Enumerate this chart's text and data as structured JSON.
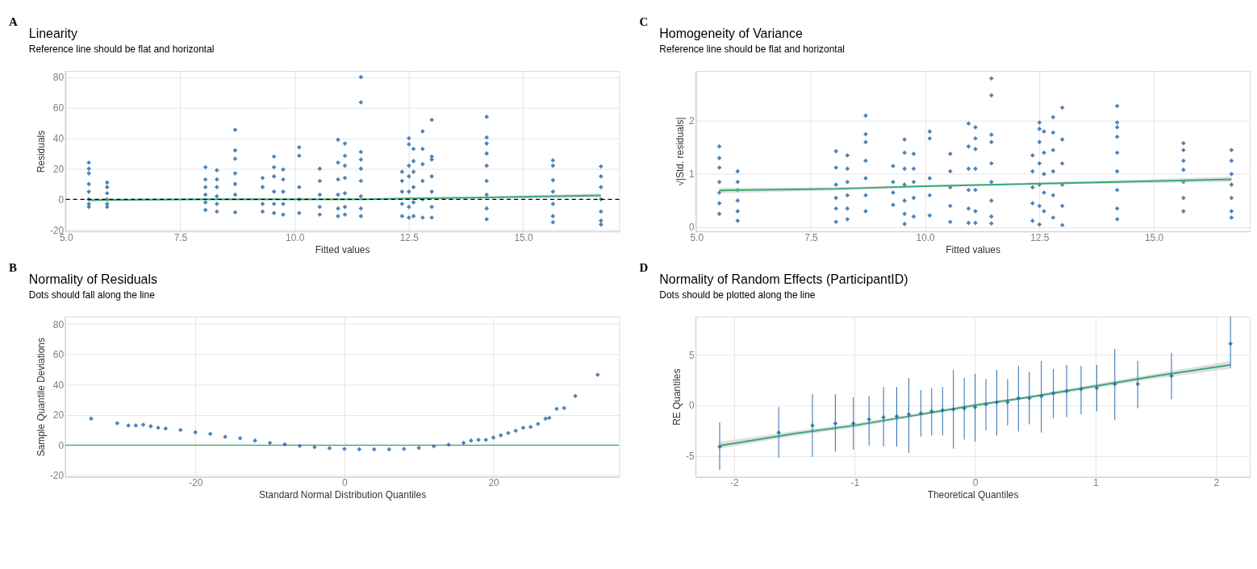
{
  "chart_data": [
    {
      "type": "scatter",
      "title": "Linearity",
      "subtitle": "Reference line should be flat and horizontal",
      "xlabel": "Fitted values",
      "ylabel": "Residuals",
      "annotations": [
        "A"
      ],
      "grid": true,
      "xlim": [
        4.98,
        17.1
      ],
      "xticks": [
        {
          "value": 5,
          "label": "5.0"
        },
        7.5,
        {
          "value": 10,
          "label": "10.0"
        },
        12.5,
        {
          "value": 15,
          "label": "15.0"
        }
      ],
      "ylim": [
        -21,
        84
      ],
      "yticks": [
        -20,
        0,
        20,
        40,
        60,
        80
      ],
      "ref_lines": [
        {
          "axis": "y",
          "value": 0,
          "color": "#000000",
          "line_style": "dashed"
        }
      ],
      "series": [
        {
          "marker": "diamond",
          "color": "#2c6fad",
          "x": [
            5.5,
            5.5,
            5.5,
            5.5,
            5.5,
            5.5,
            5.5,
            5.5,
            5.9,
            5.9,
            5.9,
            5.9,
            5.9,
            5.9,
            8.05,
            8.05,
            8.05,
            8.05,
            8.05,
            8.05,
            8.3,
            8.3,
            8.3,
            8.3,
            8.3,
            8.3,
            8.7,
            8.7,
            8.7,
            8.7,
            8.7,
            8.7,
            8.7,
            9.3,
            9.3,
            9.3,
            9.3,
            9.55,
            9.55,
            9.55,
            9.55,
            9.55,
            9.55,
            9.75,
            9.75,
            9.75,
            9.75,
            9.75,
            10.1,
            10.1,
            10.1,
            10.1,
            10.1,
            10.55,
            10.55,
            10.55,
            10.55,
            10.55,
            10.95,
            10.95,
            10.95,
            10.95,
            10.95,
            10.95,
            11.1,
            11.1,
            11.1,
            11.1,
            11.1,
            11.1,
            11.1,
            11.45,
            11.45,
            11.45,
            11.45,
            11.45,
            11.45,
            11.45,
            11.45,
            11.45,
            12.35,
            12.35,
            12.35,
            12.35,
            12.35,
            12.5,
            12.5,
            12.5,
            12.5,
            12.5,
            12.5,
            12.5,
            12.6,
            12.6,
            12.6,
            12.6,
            12.6,
            12.6,
            12.8,
            12.8,
            12.8,
            12.8,
            12.8,
            12.8,
            13.0,
            13.0,
            13.0,
            13.0,
            13.0,
            13.0,
            13.0,
            14.2,
            14.2,
            14.2,
            14.2,
            14.2,
            14.2,
            14.2,
            14.2,
            14.2,
            15.65,
            15.65,
            15.65,
            15.65,
            15.65,
            15.65,
            15.65,
            16.7,
            16.7,
            16.7,
            16.7,
            16.7,
            16.7,
            16.7
          ],
          "values": [
            24,
            20,
            17,
            10,
            5,
            0,
            -3,
            -5,
            11,
            8,
            4,
            0,
            -3,
            -5,
            21,
            13,
            8,
            3,
            -2,
            -7,
            19,
            13,
            8,
            2,
            -3,
            -8,
            45.5,
            32,
            26.5,
            17,
            10,
            3,
            -8.5,
            14,
            8,
            -3,
            -8,
            28,
            21,
            15,
            5,
            -3,
            -9,
            19.5,
            13,
            5,
            -3,
            -10,
            34,
            28.5,
            8,
            0,
            -9,
            20,
            12,
            3,
            -5,
            -10,
            39,
            24,
            13,
            3,
            -6,
            -11,
            36.5,
            28.5,
            22,
            14,
            4,
            -5,
            -10,
            80,
            63.5,
            31,
            26,
            20,
            12,
            2,
            -6,
            -11,
            18,
            12,
            5,
            -3,
            -11,
            40,
            36,
            22,
            15,
            5,
            -5,
            -12,
            33,
            25,
            18,
            8,
            -2,
            -11,
            44.5,
            33,
            23,
            12,
            0,
            -12,
            52,
            28,
            26,
            15,
            5,
            -5,
            -12,
            54,
            40.5,
            36.5,
            30,
            22,
            12,
            3,
            -6,
            -13,
            25.5,
            22,
            12.5,
            5,
            -3,
            -11,
            -15,
            21.5,
            15,
            8,
            0,
            -8,
            -14,
            -16.5
          ]
        },
        {
          "type": "line",
          "color": "#3aaa75",
          "x": [
            5.5,
            8,
            11.5,
            12.5,
            14.2,
            16.7
          ],
          "values": [
            -0.5,
            0,
            0,
            0.5,
            1.2,
            2.5
          ],
          "lower": [
            -1.5,
            -0.6,
            -0.5,
            0,
            0.5,
            1.2
          ],
          "upper": [
            0.5,
            0.6,
            0.5,
            1,
            1.9,
            3.8
          ]
        }
      ]
    },
    {
      "type": "scatter",
      "title": "Homogeneity of Variance",
      "subtitle": "Reference line should be flat and horizontal",
      "xlabel": "Fitted values",
      "ylabel": "√|Std. residuals|",
      "annotations": [
        "C"
      ],
      "grid": true,
      "xlim": [
        4.98,
        17.1
      ],
      "xticks": [
        {
          "value": 5,
          "label": "5.0"
        },
        7.5,
        {
          "value": 10,
          "label": "10.0"
        },
        12.5,
        {
          "value": 15,
          "label": "15.0"
        }
      ],
      "ylim": [
        -0.08,
        2.94
      ],
      "yticks": [
        0,
        1,
        2
      ],
      "series": [
        {
          "marker": "diamond",
          "color": "#2c6fad",
          "x": [
            5.5,
            5.5,
            5.5,
            5.5,
            5.5,
            5.5,
            5.5,
            5.9,
            5.9,
            5.9,
            5.9,
            5.9,
            5.9,
            8.05,
            8.05,
            8.05,
            8.05,
            8.05,
            8.05,
            8.3,
            8.3,
            8.3,
            8.3,
            8.3,
            8.3,
            8.7,
            8.7,
            8.7,
            8.7,
            8.7,
            8.7,
            8.7,
            9.3,
            9.3,
            9.3,
            9.3,
            9.55,
            9.55,
            9.55,
            9.55,
            9.55,
            9.55,
            9.55,
            9.75,
            9.75,
            9.75,
            9.75,
            9.75,
            10.1,
            10.1,
            10.1,
            10.1,
            10.1,
            10.55,
            10.55,
            10.55,
            10.55,
            10.55,
            10.95,
            10.95,
            10.95,
            10.95,
            10.95,
            10.95,
            11.1,
            11.1,
            11.1,
            11.1,
            11.1,
            11.1,
            11.1,
            11.45,
            11.45,
            11.45,
            11.45,
            11.45,
            11.45,
            11.45,
            11.45,
            11.45,
            12.35,
            12.35,
            12.35,
            12.35,
            12.35,
            12.5,
            12.5,
            12.5,
            12.5,
            12.5,
            12.5,
            12.5,
            12.6,
            12.6,
            12.6,
            12.6,
            12.6,
            12.8,
            12.8,
            12.8,
            12.8,
            12.8,
            12.8,
            13.0,
            13.0,
            13.0,
            13.0,
            13.0,
            13.0,
            14.2,
            14.2,
            14.2,
            14.2,
            14.2,
            14.2,
            14.2,
            14.2,
            14.2,
            15.65,
            15.65,
            15.65,
            15.65,
            15.65,
            15.65,
            15.65,
            16.7,
            16.7,
            16.7,
            16.7,
            16.7,
            16.7,
            16.7
          ],
          "values": [
            1.52,
            1.3,
            1.12,
            0.85,
            0.65,
            0.45,
            0.25,
            1.05,
            0.85,
            0.7,
            0.5,
            0.3,
            0.12,
            1.43,
            1.12,
            0.8,
            0.55,
            0.35,
            0.1,
            1.35,
            1.1,
            0.85,
            0.6,
            0.35,
            0.15,
            2.1,
            1.75,
            1.6,
            1.25,
            0.92,
            0.6,
            0.3,
            1.15,
            0.85,
            0.65,
            0.42,
            1.65,
            1.4,
            1.1,
            0.8,
            0.5,
            0.25,
            0.06,
            1.38,
            1.1,
            0.85,
            0.55,
            0.2,
            1.8,
            1.67,
            0.92,
            0.6,
            0.22,
            1.38,
            1.05,
            0.75,
            0.4,
            0.1,
            1.95,
            1.52,
            1.1,
            0.7,
            0.35,
            0.08,
            1.88,
            1.67,
            1.47,
            1.1,
            0.7,
            0.3,
            0.08,
            2.8,
            2.48,
            1.74,
            1.6,
            1.2,
            0.85,
            0.5,
            0.2,
            0.07,
            1.35,
            1.05,
            0.75,
            0.45,
            0.12,
            1.97,
            1.85,
            1.6,
            1.2,
            0.8,
            0.4,
            0.05,
            1.8,
            1.4,
            1.0,
            0.65,
            0.3,
            2.07,
            1.78,
            1.45,
            1.05,
            0.6,
            0.18,
            2.25,
            1.65,
            1.2,
            0.8,
            0.4,
            0.04,
            2.28,
            1.97,
            1.88,
            1.7,
            1.4,
            1.05,
            0.7,
            0.35,
            0.15,
            1.58,
            1.45,
            1.25,
            1.08,
            0.85,
            0.55,
            0.3,
            1.45,
            1.25,
            1.0,
            0.8,
            0.55,
            0.3,
            0.18
          ]
        },
        {
          "type": "line",
          "color": "#3aaa75",
          "x": [
            5.5,
            8,
            10,
            12,
            14.2,
            16.7
          ],
          "values": [
            0.69,
            0.72,
            0.77,
            0.81,
            0.85,
            0.9
          ],
          "lower": [
            0.64,
            0.69,
            0.75,
            0.79,
            0.82,
            0.85
          ],
          "upper": [
            0.74,
            0.75,
            0.79,
            0.83,
            0.88,
            0.95
          ]
        }
      ]
    },
    {
      "type": "scatter",
      "title": "Normality of Residuals",
      "subtitle": "Dots should fall along the line",
      "xlabel": "Standard Normal Distribution Quantiles",
      "ylabel": "Sample Quantile Deviations",
      "annotations": [
        "B"
      ],
      "grid": true,
      "xlim": [
        -37.5,
        36.9
      ],
      "xticks": [
        -20,
        0,
        20
      ],
      "ylim": [
        -21,
        85
      ],
      "yticks": [
        -20,
        0,
        20,
        40,
        60,
        80
      ],
      "ref_lines": [
        {
          "axis": "y",
          "value": 0,
          "color": "#3aaa75",
          "line_style": "solid"
        }
      ],
      "series": [
        {
          "marker": "diamond",
          "color": "#2c6fad",
          "x": [
            -34,
            -30.5,
            -29,
            -28,
            -27,
            -26,
            -25,
            -24,
            -22,
            -20,
            -18,
            -16,
            -14,
            -12,
            -10,
            -8,
            -6,
            -4,
            -2,
            0,
            2,
            4,
            6,
            8,
            10,
            12,
            14,
            16,
            17,
            18,
            19,
            20,
            21,
            22,
            23,
            24,
            25,
            26,
            27,
            27.5,
            28.5,
            29.5,
            31,
            34
          ],
          "values": [
            17.5,
            14.5,
            13,
            13,
            13.5,
            12.5,
            11.5,
            11,
            10,
            8.5,
            7.5,
            5.5,
            4.5,
            3,
            1.5,
            0.5,
            -0.5,
            -1.3,
            -2,
            -2.5,
            -2.7,
            -2.8,
            -2.8,
            -2.5,
            -1.8,
            -0.8,
            0.3,
            1.5,
            3,
            3.5,
            3.5,
            5,
            6.5,
            8,
            9.5,
            11.5,
            12,
            14,
            17.5,
            18,
            24,
            24.5,
            32.5,
            46.5
          ]
        }
      ]
    },
    {
      "type": "scatter",
      "title": "Normality of Random Effects (ParticipantID)",
      "subtitle": "Dots should be plotted along the line",
      "xlabel": "Theoretical Quantiles",
      "ylabel": "RE Quantiles",
      "annotations": [
        "D"
      ],
      "grid": true,
      "xlim": [
        -2.32,
        2.28
      ],
      "xticks": [
        -2,
        -1,
        0,
        1,
        2
      ],
      "ylim": [
        -7.1,
        8.8
      ],
      "yticks": [
        -5,
        0,
        5
      ],
      "series": [
        {
          "type": "line",
          "color": "#3aaa75",
          "x": [
            -2.12,
            -1.5,
            -1,
            -0.5,
            0,
            0.5,
            1,
            1.5,
            2.12
          ],
          "values": [
            -4.0,
            -2.8,
            -2.0,
            -1.0,
            0,
            0.9,
            1.9,
            2.9,
            4.0
          ],
          "lower": [
            -4.3,
            -3.05,
            -2.2,
            -1.15,
            -0.15,
            0.75,
            1.7,
            2.65,
            3.6
          ],
          "upper": [
            -3.6,
            -2.55,
            -1.8,
            -0.85,
            0.15,
            1.05,
            2.1,
            3.15,
            4.4
          ]
        },
        {
          "marker": "diamond",
          "color": "#2c6fad",
          "x": [
            -2.12,
            -1.63,
            -1.35,
            -1.16,
            -1.01,
            -0.88,
            -0.76,
            -0.65,
            -0.55,
            -0.45,
            -0.36,
            -0.27,
            -0.18,
            -0.09,
            0,
            0.09,
            0.18,
            0.27,
            0.36,
            0.45,
            0.55,
            0.65,
            0.76,
            0.88,
            1.01,
            1.16,
            1.35,
            1.63,
            2.12
          ],
          "values": [
            -4.1,
            -2.7,
            -2.0,
            -1.8,
            -1.8,
            -1.4,
            -1.2,
            -1.1,
            -0.9,
            -0.8,
            -0.6,
            -0.5,
            -0.4,
            -0.3,
            -0.2,
            0.1,
            0.3,
            0.3,
            0.7,
            0.7,
            0.9,
            1.2,
            1.4,
            1.6,
            1.7,
            2.1,
            2.1,
            2.9,
            6.1
          ],
          "errors": [
            [
              -6.4,
              -1.7
            ],
            [
              -5.2,
              -0.2
            ],
            [
              -5.1,
              1.1
            ],
            [
              -4.6,
              1.1
            ],
            [
              -4.4,
              0.8
            ],
            [
              -4.0,
              0.9
            ],
            [
              -4.1,
              1.8
            ],
            [
              -4.1,
              1.8
            ],
            [
              -4.7,
              2.7
            ],
            [
              -3.1,
              1.5
            ],
            [
              -3.0,
              1.7
            ],
            [
              -3.0,
              1.8
            ],
            [
              -4.3,
              3.5
            ],
            [
              -3.4,
              2.7
            ],
            [
              -3.6,
              3.1
            ],
            [
              -2.5,
              2.6
            ],
            [
              -3.0,
              3.5
            ],
            [
              -2.0,
              2.6
            ],
            [
              -2.6,
              3.9
            ],
            [
              -1.9,
              3.3
            ],
            [
              -2.7,
              4.4
            ],
            [
              -1.3,
              3.6
            ],
            [
              -1.2,
              4.0
            ],
            [
              -0.9,
              3.9
            ],
            [
              -0.6,
              4.0
            ],
            [
              -1.5,
              5.6
            ],
            [
              -0.3,
              4.4
            ],
            [
              0.6,
              5.2
            ],
            [
              3.7,
              8.8
            ]
          ]
        }
      ]
    }
  ]
}
